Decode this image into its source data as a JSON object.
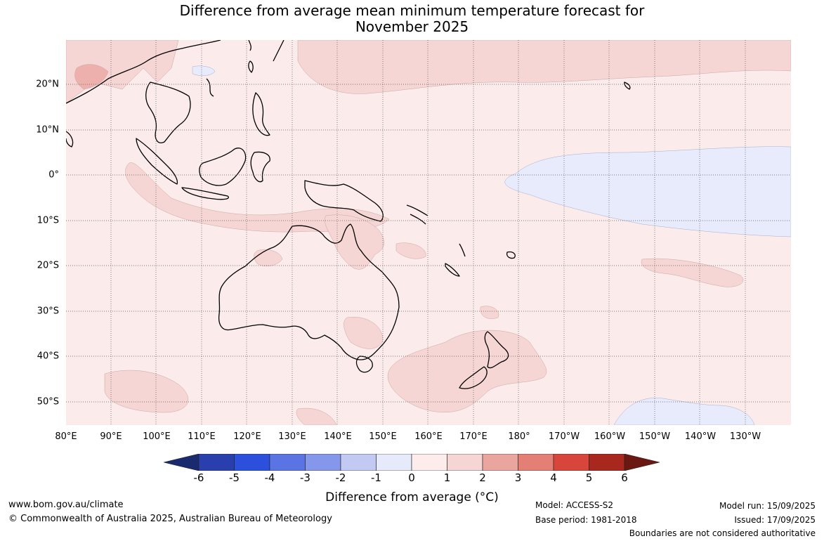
{
  "title_line1": "Difference from average mean minimum temperature forecast for",
  "title_line2": "November 2025",
  "lon_labels": [
    "80°E",
    "90°E",
    "100°E",
    "110°E",
    "120°E",
    "130°E",
    "140°E",
    "150°E",
    "160°E",
    "170°E",
    "180°",
    "170°W",
    "160°W",
    "150°W",
    "140°W",
    "130°W"
  ],
  "lat_labels": [
    "20°N",
    "10°N",
    "0°",
    "10°S",
    "20°S",
    "30°S",
    "40°S",
    "50°S"
  ],
  "colorbar": {
    "ticks": [
      "-6",
      "-5",
      "-4",
      "-3",
      "-2",
      "-1",
      "0",
      "1",
      "2",
      "3",
      "4",
      "5",
      "6"
    ],
    "colors": [
      "#1a2a6e",
      "#2a3fae",
      "#2c4fdc",
      "#5b74e4",
      "#8497ea",
      "#c2c9f2",
      "#e7eafb",
      "#fcecec",
      "#f6d6d5",
      "#eaa59f",
      "#e37f74",
      "#d8453a",
      "#a8281f",
      "#6b1712"
    ],
    "label": "Difference from average (°C)"
  },
  "colors": {
    "ocean_base": "#fbeceb",
    "warm_1_2": "#f5d6d4",
    "warm_2_3": "#eeb0ac",
    "cool_0_m1": "#e8ebfb",
    "coast": "#000000",
    "border": "#888888",
    "grid": "#555555"
  },
  "footer": {
    "website": "www.bom.gov.au/climate",
    "copyright": "© Commonwealth of Australia 2025, Australian Bureau of Meteorology",
    "model": "Model: ACCESS-S2",
    "base_period": "Base period: 1981-2018",
    "model_run": "Model run: 15/09/2025",
    "issued": "Issued: 17/09/2025",
    "disclaimer": "Boundaries are not considered authoritative"
  }
}
